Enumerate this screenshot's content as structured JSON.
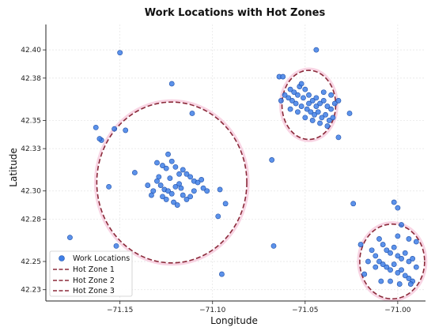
{
  "chart_data": {
    "type": "scatter",
    "title": "Work Locations with Hot Zones",
    "xlabel": "Longitude",
    "ylabel": "Latitude",
    "xlim": [
      -71.19,
      -70.985
    ],
    "ylim": [
      42.222,
      42.418
    ],
    "xticks": [
      -71.15,
      -71.1,
      -71.05,
      -71.0
    ],
    "xtick_labels": [
      "−71.15",
      "−71.10",
      "−71.05",
      "−71.00"
    ],
    "yticks": [
      42.23,
      42.25,
      42.28,
      42.3,
      42.33,
      42.35,
      42.38,
      42.4
    ],
    "ytick_labels": [
      "42.23",
      "42.25",
      "42.28",
      "42.30",
      "42.33",
      "42.35",
      "42.38",
      "42.40"
    ],
    "grid": true,
    "legend_position": "lower-left",
    "colors": {
      "points": "#3f7fe6",
      "point_edge": "#1f4fa8",
      "zones": "#8b2a3a"
    },
    "series": [
      {
        "name": "Work Locations",
        "kind": "scatter",
        "points": [
          [
            -71.15,
            42.398
          ],
          [
            -71.177,
            42.267
          ],
          [
            -71.163,
            42.345
          ],
          [
            -71.16,
            42.336
          ],
          [
            -71.153,
            42.344
          ],
          [
            -71.161,
            42.337
          ],
          [
            -71.156,
            42.303
          ],
          [
            -71.147,
            42.343
          ],
          [
            -71.142,
            42.313
          ],
          [
            -71.152,
            42.261
          ],
          [
            -71.122,
            42.376
          ],
          [
            -71.111,
            42.355
          ],
          [
            -71.096,
            42.301
          ],
          [
            -71.093,
            42.291
          ],
          [
            -71.097,
            42.282
          ],
          [
            -71.095,
            42.241
          ],
          [
            -71.13,
            42.32
          ],
          [
            -71.127,
            42.318
          ],
          [
            -71.125,
            42.316
          ],
          [
            -71.124,
            42.326
          ],
          [
            -71.122,
            42.321
          ],
          [
            -71.12,
            42.317
          ],
          [
            -71.118,
            42.312
          ],
          [
            -71.116,
            42.315
          ],
          [
            -71.114,
            42.312
          ],
          [
            -71.112,
            42.31
          ],
          [
            -71.11,
            42.307
          ],
          [
            -71.108,
            42.306
          ],
          [
            -71.106,
            42.308
          ],
          [
            -71.105,
            42.302
          ],
          [
            -71.103,
            42.3
          ],
          [
            -71.13,
            42.307
          ],
          [
            -71.128,
            42.304
          ],
          [
            -71.126,
            42.301
          ],
          [
            -71.124,
            42.3
          ],
          [
            -71.122,
            42.298
          ],
          [
            -71.12,
            42.303
          ],
          [
            -71.118,
            42.305
          ],
          [
            -71.116,
            42.297
          ],
          [
            -71.114,
            42.294
          ],
          [
            -71.112,
            42.296
          ],
          [
            -71.11,
            42.3
          ],
          [
            -71.132,
            42.3
          ],
          [
            -71.127,
            42.296
          ],
          [
            -71.125,
            42.294
          ],
          [
            -71.121,
            42.292
          ],
          [
            -71.119,
            42.29
          ],
          [
            -71.117,
            42.302
          ],
          [
            -71.135,
            42.304
          ],
          [
            -71.133,
            42.297
          ],
          [
            -71.129,
            42.31
          ],
          [
            -71.123,
            42.309
          ],
          [
            -71.068,
            42.322
          ],
          [
            -71.067,
            42.261
          ],
          [
            -71.064,
            42.381
          ],
          [
            -71.062,
            42.381
          ],
          [
            -71.044,
            42.4
          ],
          [
            -71.032,
            42.338
          ],
          [
            -71.058,
            42.372
          ],
          [
            -71.056,
            42.37
          ],
          [
            -71.054,
            42.368
          ],
          [
            -71.053,
            42.374
          ],
          [
            -71.051,
            42.366
          ],
          [
            -71.05,
            42.372
          ],
          [
            -71.048,
            42.368
          ],
          [
            -71.046,
            42.364
          ],
          [
            -71.044,
            42.366
          ],
          [
            -71.042,
            42.362
          ],
          [
            -71.04,
            42.364
          ],
          [
            -71.038,
            42.36
          ],
          [
            -71.036,
            42.358
          ],
          [
            -71.034,
            42.362
          ],
          [
            -71.057,
            42.364
          ],
          [
            -71.055,
            42.362
          ],
          [
            -71.052,
            42.36
          ],
          [
            -71.049,
            42.358
          ],
          [
            -71.047,
            42.356
          ],
          [
            -71.045,
            42.354
          ],
          [
            -71.043,
            42.356
          ],
          [
            -71.041,
            42.352
          ],
          [
            -71.039,
            42.354
          ],
          [
            -71.037,
            42.35
          ],
          [
            -71.035,
            42.352
          ],
          [
            -71.059,
            42.366
          ],
          [
            -71.061,
            42.368
          ],
          [
            -71.063,
            42.364
          ],
          [
            -71.054,
            42.356
          ],
          [
            -71.05,
            42.352
          ],
          [
            -71.046,
            42.35
          ],
          [
            -71.042,
            42.348
          ],
          [
            -71.038,
            42.346
          ],
          [
            -71.044,
            42.36
          ],
          [
            -71.048,
            42.362
          ],
          [
            -71.052,
            42.376
          ],
          [
            -71.04,
            42.37
          ],
          [
            -71.036,
            42.368
          ],
          [
            -71.032,
            42.364
          ],
          [
            -71.058,
            42.358
          ],
          [
            -71.026,
            42.355
          ],
          [
            -71.024,
            42.291
          ],
          [
            -71.018,
            42.241
          ],
          [
            -71.02,
            42.262
          ],
          [
            -71.002,
            42.292
          ],
          [
            -71.0,
            42.288
          ],
          [
            -70.998,
            42.276
          ],
          [
            -71.01,
            42.266
          ],
          [
            -71.008,
            42.262
          ],
          [
            -71.006,
            42.258
          ],
          [
            -71.004,
            42.256
          ],
          [
            -71.002,
            42.26
          ],
          [
            -71.0,
            42.254
          ],
          [
            -70.998,
            42.252
          ],
          [
            -70.996,
            42.256
          ],
          [
            -70.994,
            42.25
          ],
          [
            -70.992,
            42.252
          ],
          [
            -71.012,
            42.254
          ],
          [
            -71.01,
            42.25
          ],
          [
            -71.008,
            42.248
          ],
          [
            -71.006,
            42.246
          ],
          [
            -71.004,
            42.244
          ],
          [
            -71.002,
            42.248
          ],
          [
            -71.0,
            42.242
          ],
          [
            -70.998,
            42.244
          ],
          [
            -70.996,
            42.24
          ],
          [
            -70.994,
            42.238
          ],
          [
            -70.992,
            42.236
          ],
          [
            -71.014,
            42.258
          ],
          [
            -71.009,
            42.236
          ],
          [
            -71.004,
            42.236
          ],
          [
            -70.999,
            42.234
          ],
          [
            -70.993,
            42.234
          ],
          [
            -70.99,
            42.246
          ],
          [
            -70.99,
            42.264
          ],
          [
            -70.994,
            42.266
          ],
          [
            -71.012,
            42.246
          ],
          [
            -71.016,
            42.25
          ],
          [
            -71.0,
            42.268
          ]
        ]
      },
      {
        "name": "Hot Zone 1",
        "kind": "ellipse",
        "center": [
          -71.122,
          42.306
        ],
        "rx": 0.0405,
        "ry": 0.057
      },
      {
        "name": "Hot Zone 2",
        "kind": "ellipse",
        "center": [
          -71.048,
          42.361
        ],
        "rx": 0.0145,
        "ry": 0.0245
      },
      {
        "name": "Hot Zone 3",
        "kind": "ellipse",
        "center": [
          -71.003,
          42.25
        ],
        "rx": 0.0175,
        "ry": 0.0265
      }
    ]
  }
}
